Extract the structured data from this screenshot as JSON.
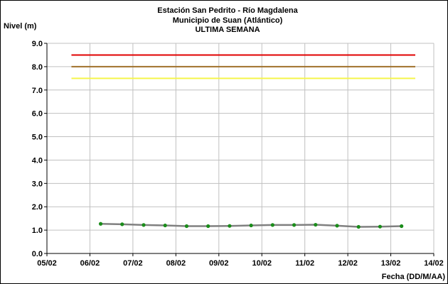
{
  "chart_data": {
    "type": "line",
    "title": "Estación San Pedrito - Río Magdalena",
    "subtitle": "Municipio de Suan (Atlántico)",
    "subtitle2": "ULTIMA SEMANA",
    "xlabel": "Fecha (DD/M/AA)",
    "ylabel": "Nivel (m)",
    "x_tick_labels": [
      "05/02",
      "06/02",
      "07/02",
      "08/02",
      "09/02",
      "10/02",
      "11/02",
      "12/02",
      "13/02",
      "14/02"
    ],
    "y_tick_labels": [
      "0.0",
      "1.0",
      "2.0",
      "3.0",
      "4.0",
      "5.0",
      "6.0",
      "7.0",
      "8.0",
      "9.0"
    ],
    "xlim": [
      "05/02",
      "14/02"
    ],
    "ylim": [
      0,
      9
    ],
    "grid": true,
    "thresholds": [
      {
        "value": 8.5,
        "color": "#e00000",
        "from_day": 5.57,
        "to_day": 13.57
      },
      {
        "value": 8.0,
        "color": "#a0702a",
        "from_day": 5.57,
        "to_day": 13.57
      },
      {
        "value": 7.5,
        "color": "#f5f54a",
        "from_day": 5.57,
        "to_day": 13.57
      }
    ],
    "series": [
      {
        "line_color": "#808080",
        "marker_color": "#1a8c1a",
        "points": [
          {
            "x": 6.25,
            "y": 1.27
          },
          {
            "x": 6.75,
            "y": 1.25
          },
          {
            "x": 7.25,
            "y": 1.22
          },
          {
            "x": 7.75,
            "y": 1.2
          },
          {
            "x": 8.25,
            "y": 1.17
          },
          {
            "x": 8.75,
            "y": 1.17
          },
          {
            "x": 9.25,
            "y": 1.18
          },
          {
            "x": 9.75,
            "y": 1.2
          },
          {
            "x": 10.25,
            "y": 1.22
          },
          {
            "x": 10.75,
            "y": 1.22
          },
          {
            "x": 11.25,
            "y": 1.23
          },
          {
            "x": 11.75,
            "y": 1.19
          },
          {
            "x": 12.25,
            "y": 1.14
          },
          {
            "x": 12.75,
            "y": 1.15
          },
          {
            "x": 13.25,
            "y": 1.17
          }
        ]
      }
    ]
  }
}
